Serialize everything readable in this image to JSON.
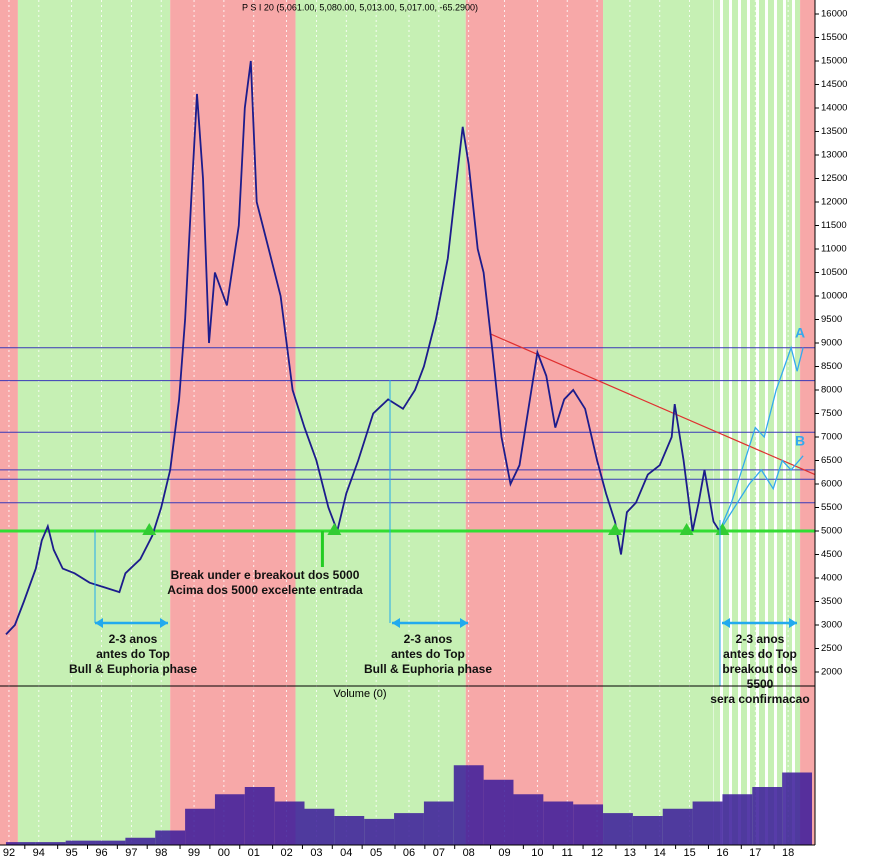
{
  "chart_data": {
    "type": "line",
    "title": "P S I 20 (5,061.00, 5,080.00, 5,013.00, 5,017.00, -65.2900)",
    "xlim": [
      1991.8,
      2019.1
    ],
    "ylim": [
      2000,
      16000
    ],
    "yticks": [
      2000,
      2500,
      3000,
      3500,
      4000,
      4500,
      5000,
      5500,
      6000,
      6500,
      7000,
      7500,
      8000,
      8500,
      9000,
      9500,
      10000,
      10500,
      11000,
      11500,
      12000,
      12500,
      13000,
      13500,
      14000,
      14500,
      15000,
      15500,
      16000
    ],
    "xticks": [
      {
        "value": 1992.1,
        "label": "92"
      },
      {
        "value": 1993.1,
        "label": "94"
      },
      {
        "value": 1994.2,
        "label": "95"
      },
      {
        "value": 1995.2,
        "label": "96"
      },
      {
        "value": 1996.2,
        "label": "97"
      },
      {
        "value": 1997.2,
        "label": "98"
      },
      {
        "value": 1998.3,
        "label": "99"
      },
      {
        "value": 1999.3,
        "label": "00"
      },
      {
        "value": 2000.3,
        "label": "01"
      },
      {
        "value": 2001.4,
        "label": "02"
      },
      {
        "value": 2002.4,
        "label": "03"
      },
      {
        "value": 2003.4,
        "label": "04"
      },
      {
        "value": 2004.4,
        "label": "05"
      },
      {
        "value": 2005.5,
        "label": "06"
      },
      {
        "value": 2006.5,
        "label": "07"
      },
      {
        "value": 2007.5,
        "label": "08"
      },
      {
        "value": 2008.7,
        "label": "09"
      },
      {
        "value": 2009.8,
        "label": "10"
      },
      {
        "value": 2010.8,
        "label": "11"
      },
      {
        "value": 2011.8,
        "label": "12"
      },
      {
        "value": 2012.9,
        "label": "13"
      },
      {
        "value": 2013.9,
        "label": "14"
      },
      {
        "value": 2014.9,
        "label": "15"
      },
      {
        "value": 2016.0,
        "label": "16"
      },
      {
        "value": 2017.1,
        "label": "17"
      },
      {
        "value": 2018.2,
        "label": "18"
      }
    ],
    "series": [
      {
        "name": "PSI 20",
        "color": "#1c1c8c",
        "x": [
          1992.0,
          1992.3,
          1992.6,
          1993.0,
          1993.2,
          1993.4,
          1993.6,
          1993.9,
          1994.3,
          1994.8,
          1995.3,
          1995.8,
          1996.0,
          1996.5,
          1996.9,
          1997.2,
          1997.5,
          1997.8,
          1998.0,
          1998.2,
          1998.4,
          1998.6,
          1998.8,
          1999.0,
          1999.4,
          1999.8,
          2000.0,
          2000.2,
          2000.4,
          2000.8,
          2001.2,
          2001.6,
          2002.0,
          2002.4,
          2002.8,
          2003.1,
          2003.4,
          2003.8,
          2004.3,
          2004.8,
          2005.3,
          2005.7,
          2006.0,
          2006.4,
          2006.8,
          2007.1,
          2007.3,
          2007.5,
          2007.8,
          2008.0,
          2008.3,
          2008.6,
          2008.9,
          2009.2,
          2009.6,
          2009.8,
          2010.1,
          2010.4,
          2010.7,
          2011.0,
          2011.4,
          2011.8,
          2012.1,
          2012.4,
          2012.6,
          2012.8,
          2013.1,
          2013.5,
          2013.9,
          2014.3,
          2014.4,
          2014.7,
          2015.0,
          2015.2,
          2015.4,
          2015.7,
          2015.9
        ],
        "values": [
          2800,
          3000,
          3500,
          4200,
          4800,
          5100,
          4600,
          4200,
          4100,
          3900,
          3800,
          3700,
          4100,
          4400,
          4900,
          5500,
          6300,
          7800,
          9500,
          12000,
          14300,
          12500,
          9000,
          10500,
          9800,
          11500,
          14000,
          15000,
          12000,
          11000,
          10000,
          8000,
          7200,
          6500,
          5500,
          5000,
          5800,
          6500,
          7500,
          7800,
          7600,
          8000,
          8500,
          9500,
          10800,
          12500,
          13600,
          12800,
          11000,
          10500,
          8800,
          7000,
          6000,
          6400,
          8000,
          8800,
          8300,
          7200,
          7800,
          8000,
          7600,
          6500,
          5800,
          5200,
          4500,
          5400,
          5600,
          6200,
          6400,
          7000,
          7700,
          6500,
          5000,
          5600,
          6300,
          5200,
          5000
        ]
      },
      {
        "name": "A",
        "color": "#33aaee",
        "x": [
          2015.9,
          2016.3,
          2016.7,
          2017.1,
          2017.4,
          2017.8,
          2018.3,
          2018.5,
          2018.7
        ],
        "values": [
          5000,
          5600,
          6400,
          7200,
          7000,
          8000,
          8900,
          8400,
          8900
        ]
      },
      {
        "name": "B",
        "color": "#33aaee",
        "x": [
          2015.9,
          2016.4,
          2016.9,
          2017.3,
          2017.7,
          2018.0,
          2018.3,
          2018.7
        ],
        "values": [
          5000,
          5500,
          6000,
          6300,
          5900,
          6500,
          6300,
          6600
        ]
      }
    ],
    "levels": [
      8900,
      8200,
      7100,
      6300,
      6100,
      5600
    ],
    "support": 5000,
    "trend": {
      "x": [
        2008.2,
        2019.1
      ],
      "values": [
        9200,
        6200
      ],
      "color": "#e03030"
    },
    "phases": [
      {
        "start": 1991.8,
        "end": 1992.4,
        "color": "#f7a8a8"
      },
      {
        "start": 1992.4,
        "end": 1997.5,
        "color": "#c6f0b4"
      },
      {
        "start": 1997.5,
        "end": 2001.7,
        "color": "#f7a8a8"
      },
      {
        "start": 2001.7,
        "end": 2007.4,
        "color": "#c6f0b4"
      },
      {
        "start": 2007.4,
        "end": 2012.0,
        "color": "#f7a8a8"
      },
      {
        "start": 2012.0,
        "end": 2015.7,
        "color": "#c6f0b4"
      },
      {
        "start": 2015.7,
        "end": 2018.6,
        "color": "#c6f0b4",
        "striped": true
      },
      {
        "start": 2018.6,
        "end": 2019.1,
        "color": "#f7a8a8"
      }
    ],
    "volume": {
      "label": "Volume (0)",
      "ylim": [
        0,
        100
      ],
      "color": "#3a1a9a",
      "x": [
        1992,
        1993,
        1994,
        1995,
        1996,
        1997,
        1998,
        1999,
        2000,
        2001,
        2002,
        2003,
        2004,
        2005,
        2006,
        2007,
        2008,
        2009,
        2010,
        2011,
        2012,
        2013,
        2014,
        2015,
        2016,
        2017,
        2018
      ],
      "values": [
        2,
        2,
        3,
        3,
        5,
        10,
        25,
        35,
        40,
        30,
        25,
        20,
        18,
        22,
        30,
        55,
        45,
        35,
        30,
        28,
        22,
        20,
        25,
        30,
        35,
        40,
        50
      ]
    },
    "annotations": {
      "break": [
        "Break under e breakout dos 5000",
        "Acima dos 5000 excelente entrada"
      ],
      "first": [
        "2-3 anos",
        "antes do Top",
        "Bull & Euphoria phase"
      ],
      "second": [
        "2-3 anos",
        "antes do Top",
        "Bull & Euphoria phase"
      ],
      "third": [
        "2-3 anos",
        "antes do Top",
        "breakout dos",
        "5500",
        "sera confirmacao"
      ]
    }
  }
}
